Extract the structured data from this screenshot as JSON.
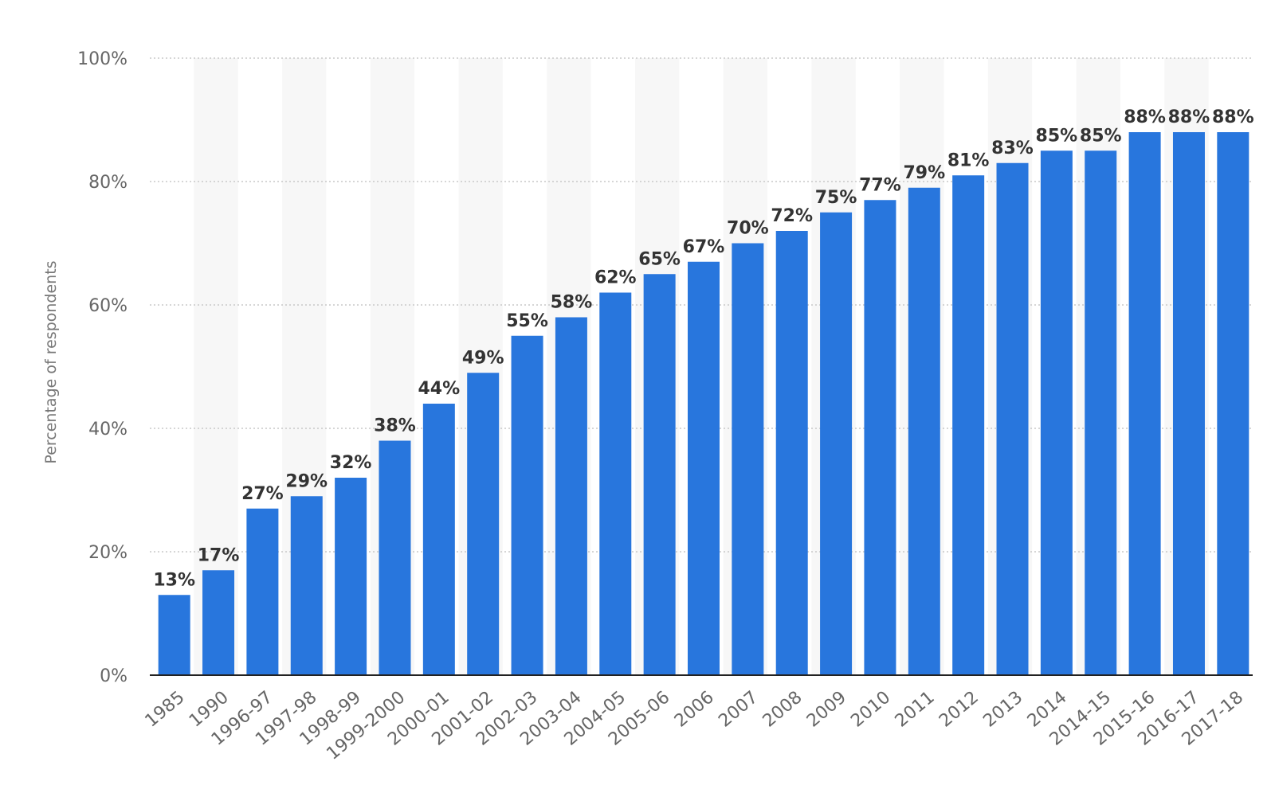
{
  "chart_data": {
    "type": "bar",
    "categories": [
      "1985",
      "1990",
      "1996-97",
      "1997-98",
      "1998-99",
      "1999-2000",
      "2000-01",
      "2001-02",
      "2002-03",
      "2003-04",
      "2004-05",
      "2005-06",
      "2006",
      "2007",
      "2008",
      "2009",
      "2010",
      "2011",
      "2012",
      "2013",
      "2014",
      "2014-15",
      "2015-16",
      "2016-17",
      "2017-18"
    ],
    "values": [
      13,
      17,
      27,
      29,
      32,
      38,
      44,
      49,
      55,
      58,
      62,
      65,
      67,
      70,
      72,
      75,
      77,
      79,
      81,
      83,
      85,
      85,
      88,
      88,
      88
    ],
    "value_suffix": "%",
    "ylabel": "Percentage of respondents",
    "xlabel": "",
    "ylim": [
      0,
      100
    ],
    "yticks": [
      "0%",
      "20%",
      "40%",
      "60%",
      "80%",
      "100%"
    ],
    "grid": true,
    "colors": {
      "bar": "#2876dd",
      "band": "#f7f7f7",
      "grid": "#c8c8c8",
      "axis": "#222222"
    }
  }
}
